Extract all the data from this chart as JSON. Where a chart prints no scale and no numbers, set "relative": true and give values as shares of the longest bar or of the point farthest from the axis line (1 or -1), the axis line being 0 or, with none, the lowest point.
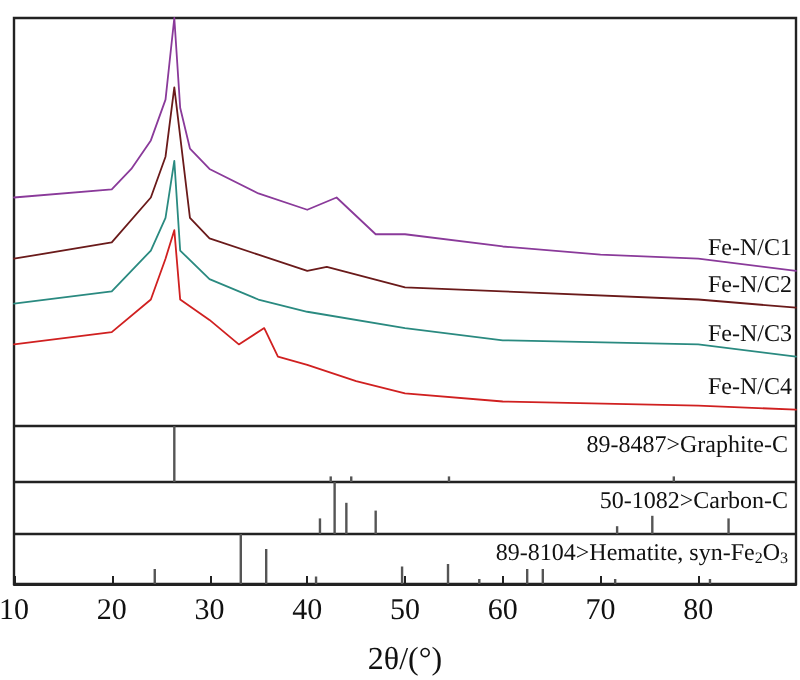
{
  "chart_data": [
    {
      "type": "line",
      "relative": true,
      "xlim": [
        10,
        90
      ],
      "tick_labels": false,
      "grid": false,
      "legend": false,
      "marker": "none",
      "line_style": "solid",
      "series": [
        {
          "name": "Fe-N/C1",
          "color": "#8a3a9a",
          "x": [
            10,
            20,
            22,
            24,
            25.5,
            26.4,
            27,
            28,
            30,
            35,
            40,
            43,
            47,
            50,
            60,
            70,
            80,
            90
          ],
          "values": [
            0.56,
            0.58,
            0.63,
            0.7,
            0.8,
            1,
            0.78,
            0.68,
            0.63,
            0.57,
            0.53,
            0.56,
            0.47,
            0.47,
            0.44,
            0.42,
            0.41,
            0.38
          ]
        },
        {
          "name": "Fe-N/C2",
          "color": "#6a1a1a",
          "x": [
            10,
            20,
            24,
            25.5,
            26.4,
            28,
            30,
            35,
            40,
            42,
            50,
            60,
            80,
            90
          ],
          "values": [
            0.41,
            0.45,
            0.56,
            0.66,
            0.83,
            0.51,
            0.46,
            0.42,
            0.38,
            0.39,
            0.34,
            0.33,
            0.31,
            0.29
          ]
        },
        {
          "name": "Fe-N/C3",
          "color": "#2a8a80",
          "x": [
            10,
            20,
            24,
            25.5,
            26.4,
            27,
            30,
            35,
            40,
            50,
            60,
            80,
            90
          ],
          "values": [
            0.3,
            0.33,
            0.43,
            0.51,
            0.65,
            0.43,
            0.36,
            0.31,
            0.28,
            0.24,
            0.21,
            0.2,
            0.17
          ]
        },
        {
          "name": "Fe-N/C4",
          "color": "#d02020",
          "x": [
            10,
            20,
            24,
            25.5,
            26.4,
            27,
            30,
            33,
            35.6,
            37,
            40,
            45,
            50,
            60,
            80,
            90
          ],
          "values": [
            0.2,
            0.23,
            0.31,
            0.41,
            0.48,
            0.31,
            0.26,
            0.2,
            0.24,
            0.17,
            0.15,
            0.11,
            0.08,
            0.06,
            0.05,
            0.04
          ]
        }
      ]
    },
    {
      "type": "bar",
      "relative": true,
      "xlim": [
        10,
        90
      ],
      "tick_labels": false,
      "grid": false,
      "legend": false,
      "series": [
        {
          "name": "89-8487>Graphite-C",
          "color": "#555555",
          "x": [
            26.4,
            42.4,
            44.5,
            54.5,
            77.5
          ],
          "values": [
            1,
            0.1,
            0.1,
            0.1,
            0.1
          ]
        }
      ]
    },
    {
      "type": "bar",
      "relative": true,
      "xlim": [
        10,
        90
      ],
      "tick_labels": false,
      "grid": false,
      "legend": false,
      "series": [
        {
          "name": "50-1082>Carbon-C",
          "color": "#555555",
          "x": [
            41.3,
            42.8,
            44,
            47,
            71.7,
            75.3,
            83.1
          ],
          "values": [
            0.3,
            1,
            0.6,
            0.45,
            0.15,
            0.35,
            0.3
          ]
        }
      ]
    },
    {
      "type": "bar",
      "relative": true,
      "xlim": [
        10,
        90
      ],
      "xticks": [
        10,
        20,
        30,
        40,
        50,
        60,
        70,
        80
      ],
      "xlabel": "2θ/(°)",
      "tick_labels": "x",
      "grid": false,
      "legend": false,
      "series": [
        {
          "name": "89-8104>Hematite, syn-Fe$_{2}$O$_{3}$",
          "color": "#555555",
          "x": [
            24.4,
            33.2,
            35.8,
            40.9,
            49.7,
            54.4,
            57.6,
            62.5,
            64.1,
            71.5,
            81.2
          ],
          "values": [
            0.3,
            1,
            0.7,
            0.15,
            0.35,
            0.4,
            0.1,
            0.3,
            0.3,
            0.1,
            0.1
          ]
        }
      ]
    }
  ]
}
